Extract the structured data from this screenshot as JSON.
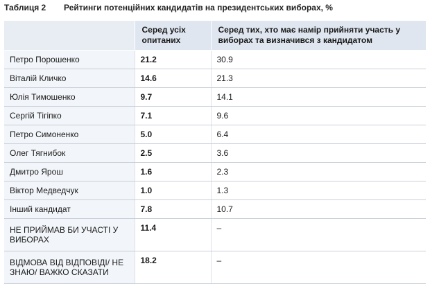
{
  "caption": {
    "label": "Таблиця 2",
    "title": "Рейтинги потенційних кандидатів на президентських виборах, %"
  },
  "table": {
    "headers": [
      "",
      "Серед усіх опитаних",
      "Серед тих, хто має намір прийняти участь у виборах та визначився з кандидатом"
    ],
    "rows": [
      {
        "name": "Петро Порошенко",
        "all": "21.2",
        "decided": "30.9"
      },
      {
        "name": "Віталій Кличко",
        "all": "14.6",
        "decided": "21.3"
      },
      {
        "name": "Юлія Тимошенко",
        "all": "9.7",
        "decided": "14.1"
      },
      {
        "name": "Сергій Тігіпко",
        "all": "7.1",
        "decided": "9.6"
      },
      {
        "name": "Петро Симоненко",
        "all": "5.0",
        "decided": "6.4"
      },
      {
        "name": "Олег Тягнибок",
        "all": "2.5",
        "decided": "3.6"
      },
      {
        "name": "Дмитро Ярош",
        "all": "1.6",
        "decided": "2.3"
      },
      {
        "name": "Віктор Медведчук",
        "all": "1.0",
        "decided": "1.3"
      },
      {
        "name": "Інший кандидат",
        "all": "7.8",
        "decided": "10.7"
      },
      {
        "name": "НЕ ПРИЙМАВ БИ УЧАСТІ У ВИБОРАХ",
        "all": "11.4",
        "decided": "–"
      },
      {
        "name": "ВІДМОВА ВІД ВІДПОВІДІ/ НЕ ЗНАЮ/ ВАЖКО СКАЗАТИ",
        "all": "18.2",
        "decided": "–"
      }
    ]
  }
}
